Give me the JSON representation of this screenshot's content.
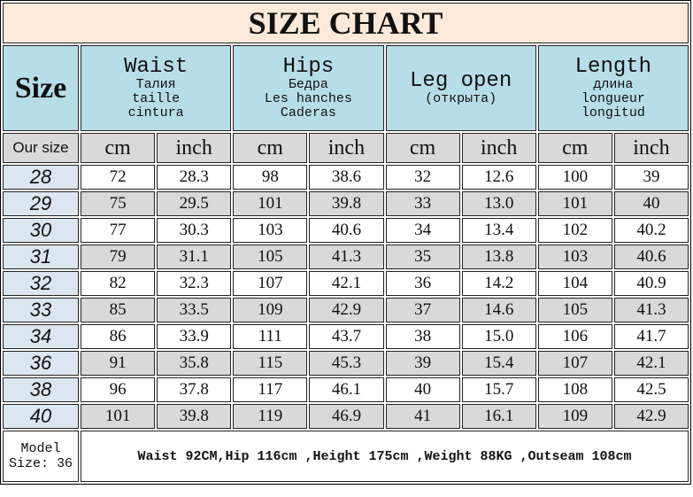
{
  "title": "SIZE CHART",
  "header": {
    "size": "Size",
    "groups": [
      {
        "main": "Waist",
        "sub": [
          "Талия",
          "taille",
          "cintura"
        ]
      },
      {
        "main": "Hips",
        "sub": [
          "Бедра",
          "Les hanches",
          "Caderas"
        ]
      },
      {
        "main": "Leg open",
        "sub": [
          "(открыта)"
        ]
      },
      {
        "main": "Length",
        "sub": [
          "длина",
          "longueur",
          "longitud"
        ]
      }
    ],
    "our_size": "Our size",
    "units": [
      "cm",
      "inch",
      "cm",
      "inch",
      "cm",
      "inch",
      "cm",
      "inch"
    ]
  },
  "rows": [
    [
      "28",
      "72",
      "28.3",
      "98",
      "38.6",
      "32",
      "12.6",
      "100",
      "39"
    ],
    [
      "29",
      "75",
      "29.5",
      "101",
      "39.8",
      "33",
      "13.0",
      "101",
      "40"
    ],
    [
      "30",
      "77",
      "30.3",
      "103",
      "40.6",
      "34",
      "13.4",
      "102",
      "40.2"
    ],
    [
      "31",
      "79",
      "31.1",
      "105",
      "41.3",
      "35",
      "13.8",
      "103",
      "40.6"
    ],
    [
      "32",
      "82",
      "32.3",
      "107",
      "42.1",
      "36",
      "14.2",
      "104",
      "40.9"
    ],
    [
      "33",
      "85",
      "33.5",
      "109",
      "42.9",
      "37",
      "14.6",
      "105",
      "41.3"
    ],
    [
      "34",
      "86",
      "33.9",
      "111",
      "43.7",
      "38",
      "15.0",
      "106",
      "41.7"
    ],
    [
      "36",
      "91",
      "35.8",
      "115",
      "45.3",
      "39",
      "15.4",
      "107",
      "42.1"
    ],
    [
      "38",
      "96",
      "37.8",
      "117",
      "46.1",
      "40",
      "15.7",
      "108",
      "42.5"
    ],
    [
      "40",
      "101",
      "39.8",
      "119",
      "46.9",
      "41",
      "16.1",
      "109",
      "42.9"
    ]
  ],
  "model": {
    "label1": "Model",
    "label2": "Size: 36",
    "desc": "Waist 92CM,Hip 116cm ,Height 175cm ,Weight 88KG ,Outseam 108cm"
  },
  "colors": {
    "title_bg": "#fde9d9",
    "header_bg": "#b7dee8",
    "unit_bg": "#d9d9d9",
    "size_col_bg": "#dce6f1"
  }
}
